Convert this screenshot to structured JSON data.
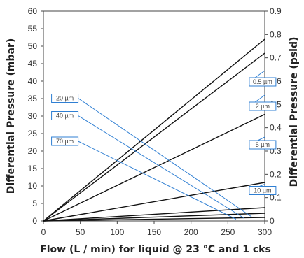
{
  "chart_data": {
    "type": "line",
    "xlabel": "Flow (L / min) for liquid @ 23 °C and 1 cks",
    "ylabel_left": "Differential Pressure (mbar)",
    "ylabel_right": "Differential Pressure (psid)",
    "xlim": [
      0,
      300
    ],
    "ylim_left": [
      0,
      60
    ],
    "ylim_right": [
      0,
      0.9
    ],
    "x_ticks": [
      "0",
      "50",
      "100",
      "150",
      "200",
      "250",
      "300"
    ],
    "y_left_ticks": [
      "0",
      "5",
      "10",
      "15",
      "20",
      "25",
      "30",
      "35",
      "40",
      "45",
      "50",
      "55",
      "60"
    ],
    "y_right_ticks": [
      "0",
      "0.1",
      "0.2",
      "0.3",
      "0.4",
      "0.5",
      "0.6",
      "0.7",
      "0.8",
      "0.9"
    ],
    "grid": false,
    "series": [
      {
        "name": "0.5 µm",
        "x": [
          0,
          300
        ],
        "y": [
          0,
          52
        ]
      },
      {
        "name": "2 µm",
        "x": [
          0,
          300
        ],
        "y": [
          0,
          48
        ]
      },
      {
        "name": "5 µm",
        "x": [
          0,
          300
        ],
        "y": [
          0,
          30.5
        ]
      },
      {
        "name": "10 µm",
        "x": [
          0,
          300
        ],
        "y": [
          0,
          11
        ]
      },
      {
        "name": "20 µm",
        "x": [
          0,
          300
        ],
        "y": [
          0,
          3.8
        ]
      },
      {
        "name": "40 µm",
        "x": [
          0,
          300
        ],
        "y": [
          0,
          2.2
        ]
      },
      {
        "name": "70 µm",
        "x": [
          0,
          300
        ],
        "y": [
          0,
          1.0
        ]
      }
    ],
    "callouts": [
      {
        "label": "0.5 µm",
        "box": [
          279,
          41
        ],
        "target": [
          300,
          43
        ]
      },
      {
        "label": "2 µm",
        "box": [
          279,
          34
        ],
        "target": [
          300,
          36
        ]
      },
      {
        "label": "5 µm",
        "box": [
          279,
          23
        ],
        "target": [
          300,
          24
        ]
      },
      {
        "label": "10 µm",
        "box": [
          279,
          9.9
        ],
        "target": [
          300,
          10.5
        ]
      },
      {
        "label": "20 µm",
        "box": [
          11,
          36.3
        ],
        "target": [
          282,
          1.2
        ]
      },
      {
        "label": "40 µm",
        "box": [
          11,
          31.3
        ],
        "target": [
          272,
          0.8
        ]
      },
      {
        "label": "70 µm",
        "box": [
          11,
          24
        ],
        "target": [
          261,
          0.5
        ]
      }
    ]
  },
  "colors": {
    "series_line": "#111111",
    "callout": "#2f7fd3",
    "axis": "#444444"
  }
}
